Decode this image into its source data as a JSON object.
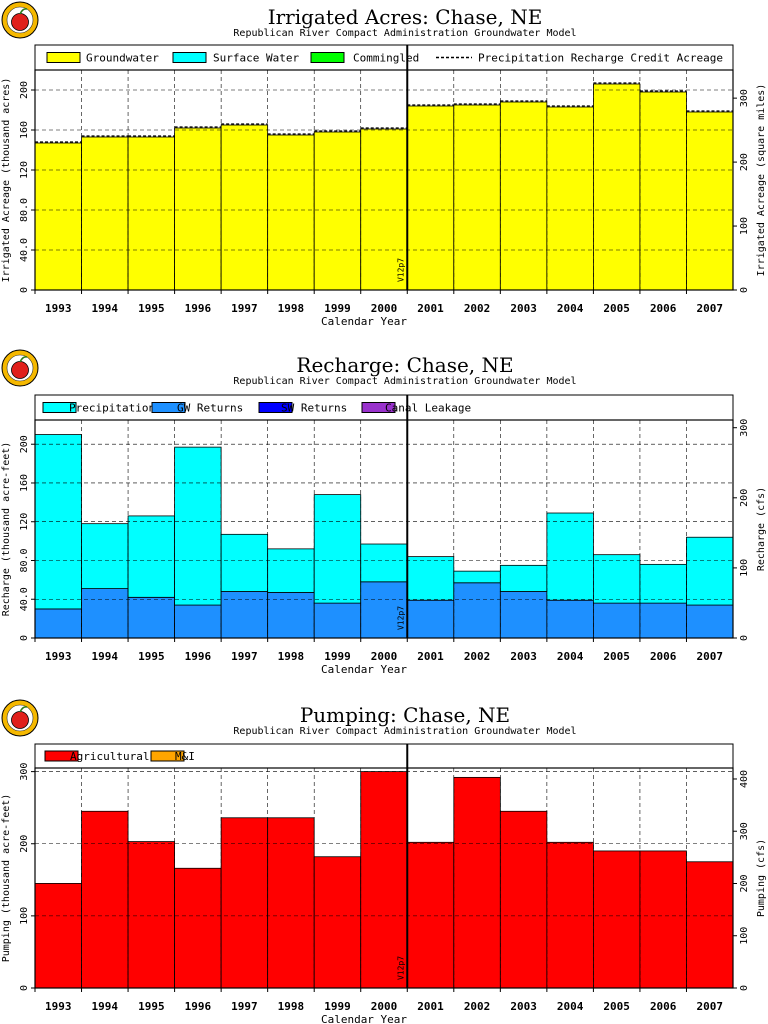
{
  "colors": {
    "groundwater": "#ffff00",
    "surface_water": "#00ffff",
    "commingled": "#00ff00",
    "precipitation": "#00ffff",
    "gw_returns": "#1e90ff",
    "sw_returns": "#0000ff",
    "canal_leakage": "#9932cc",
    "agricultural": "#ff0000",
    "mi": "#ffa500",
    "logo_ring": "#f5b800",
    "logo_apple": "#e0201b"
  },
  "chart_data": [
    {
      "type": "bar",
      "title": "Irrigated Acres: Chase, NE",
      "subtitle": "Republican River Compact Administration Groundwater Model",
      "xlabel": "Calendar Year",
      "ylabel": "Irrigated Acreage (thousand acres)",
      "ylabel_right": "Irrigated Acreage (square miles)",
      "categories": [
        "1993",
        "1994",
        "1995",
        "1996",
        "1997",
        "1998",
        "1999",
        "2000",
        "2001",
        "2002",
        "2003",
        "2004",
        "2005",
        "2006",
        "2007"
      ],
      "series": [
        {
          "name": "Groundwater",
          "values": [
            147,
            153,
            153,
            162,
            165,
            155,
            158,
            161,
            184,
            185,
            188,
            183,
            206,
            198,
            178
          ]
        },
        {
          "name": "Surface Water",
          "values": [
            0,
            0,
            0,
            0,
            0,
            0,
            0,
            0,
            0,
            0,
            0,
            0,
            0,
            0,
            0
          ]
        },
        {
          "name": "Commingled",
          "values": [
            0,
            0,
            0,
            0,
            0,
            0,
            0,
            0,
            0,
            0,
            0,
            0,
            0,
            0,
            0
          ]
        },
        {
          "name": "Precipitation Recharge Credit Acreage",
          "values": [
            148,
            154,
            154,
            163,
            166,
            156,
            159,
            162,
            185,
            186,
            189,
            184,
            207,
            199,
            179
          ]
        }
      ],
      "ylim": [
        0,
        220
      ],
      "yticks": [
        "0",
        "40.0",
        "80.0",
        "120",
        "160",
        "200"
      ],
      "ylim_right": [
        0,
        344
      ],
      "yticks_right": [
        "0",
        "100",
        "200",
        "300"
      ],
      "marker_label": "V12p7",
      "marker_between": [
        "2000",
        "2001"
      ],
      "grid": true,
      "legend_position": "top"
    },
    {
      "type": "bar",
      "title": "Recharge: Chase, NE",
      "subtitle": "Republican River Compact Administration Groundwater Model",
      "xlabel": "Calendar Year",
      "ylabel": "Recharge (thousand acre-feet)",
      "ylabel_right": "Recharge (cfs)",
      "categories": [
        "1993",
        "1994",
        "1995",
        "1996",
        "1997",
        "1998",
        "1999",
        "2000",
        "2001",
        "2002",
        "2003",
        "2004",
        "2005",
        "2006",
        "2007"
      ],
      "series": [
        {
          "name": "Precipitation",
          "values": [
            180,
            67,
            84,
            163,
            59,
            45,
            112,
            39,
            45,
            12,
            27,
            90,
            50,
            40,
            70
          ]
        },
        {
          "name": "GW Returns",
          "values": [
            30,
            51,
            42,
            34,
            48,
            47,
            36,
            58,
            39,
            57,
            48,
            39,
            36,
            36,
            34
          ]
        },
        {
          "name": "SW Returns",
          "values": [
            0,
            0,
            0,
            0,
            0,
            0,
            0,
            0,
            0,
            0,
            0,
            0,
            0,
            0,
            0
          ]
        },
        {
          "name": "Canal Leakage",
          "values": [
            0,
            0,
            0,
            0,
            0,
            0,
            0,
            0,
            0,
            0,
            0,
            0,
            0,
            0,
            0
          ]
        }
      ],
      "ylim": [
        0,
        225
      ],
      "yticks": [
        "0",
        "40.0",
        "80.0",
        "120",
        "160",
        "200"
      ],
      "ylim_right": [
        0,
        311
      ],
      "yticks_right": [
        "0",
        "100",
        "200",
        "300"
      ],
      "marker_label": "V12p7",
      "marker_between": [
        "2000",
        "2001"
      ],
      "grid": true,
      "legend_position": "top"
    },
    {
      "type": "bar",
      "title": "Pumping: Chase, NE",
      "subtitle": "Republican River Compact Administration Groundwater Model",
      "xlabel": "Calendar Year",
      "ylabel": "Pumping (thousand acre-feet)",
      "ylabel_right": "Pumping (cfs)",
      "categories": [
        "1993",
        "1994",
        "1995",
        "1996",
        "1997",
        "1998",
        "1999",
        "2000",
        "2001",
        "2002",
        "2003",
        "2004",
        "2005",
        "2006",
        "2007"
      ],
      "series": [
        {
          "name": "Agricultural",
          "values": [
            145,
            245,
            203,
            166,
            236,
            236,
            182,
            300,
            202,
            292,
            245,
            202,
            190,
            190,
            175
          ]
        },
        {
          "name": "M&I",
          "values": [
            0,
            0,
            0,
            0,
            0,
            0,
            0,
            0,
            0,
            0,
            0,
            0,
            0,
            0,
            0
          ]
        }
      ],
      "ylim": [
        0,
        305
      ],
      "yticks": [
        "0",
        "100",
        "200",
        "300"
      ],
      "ylim_right": [
        0,
        421
      ],
      "yticks_right": [
        "0",
        "100",
        "200",
        "300",
        "400"
      ],
      "marker_label": "V12p7",
      "marker_between": [
        "2000",
        "2001"
      ],
      "grid": true,
      "legend_position": "top"
    }
  ]
}
